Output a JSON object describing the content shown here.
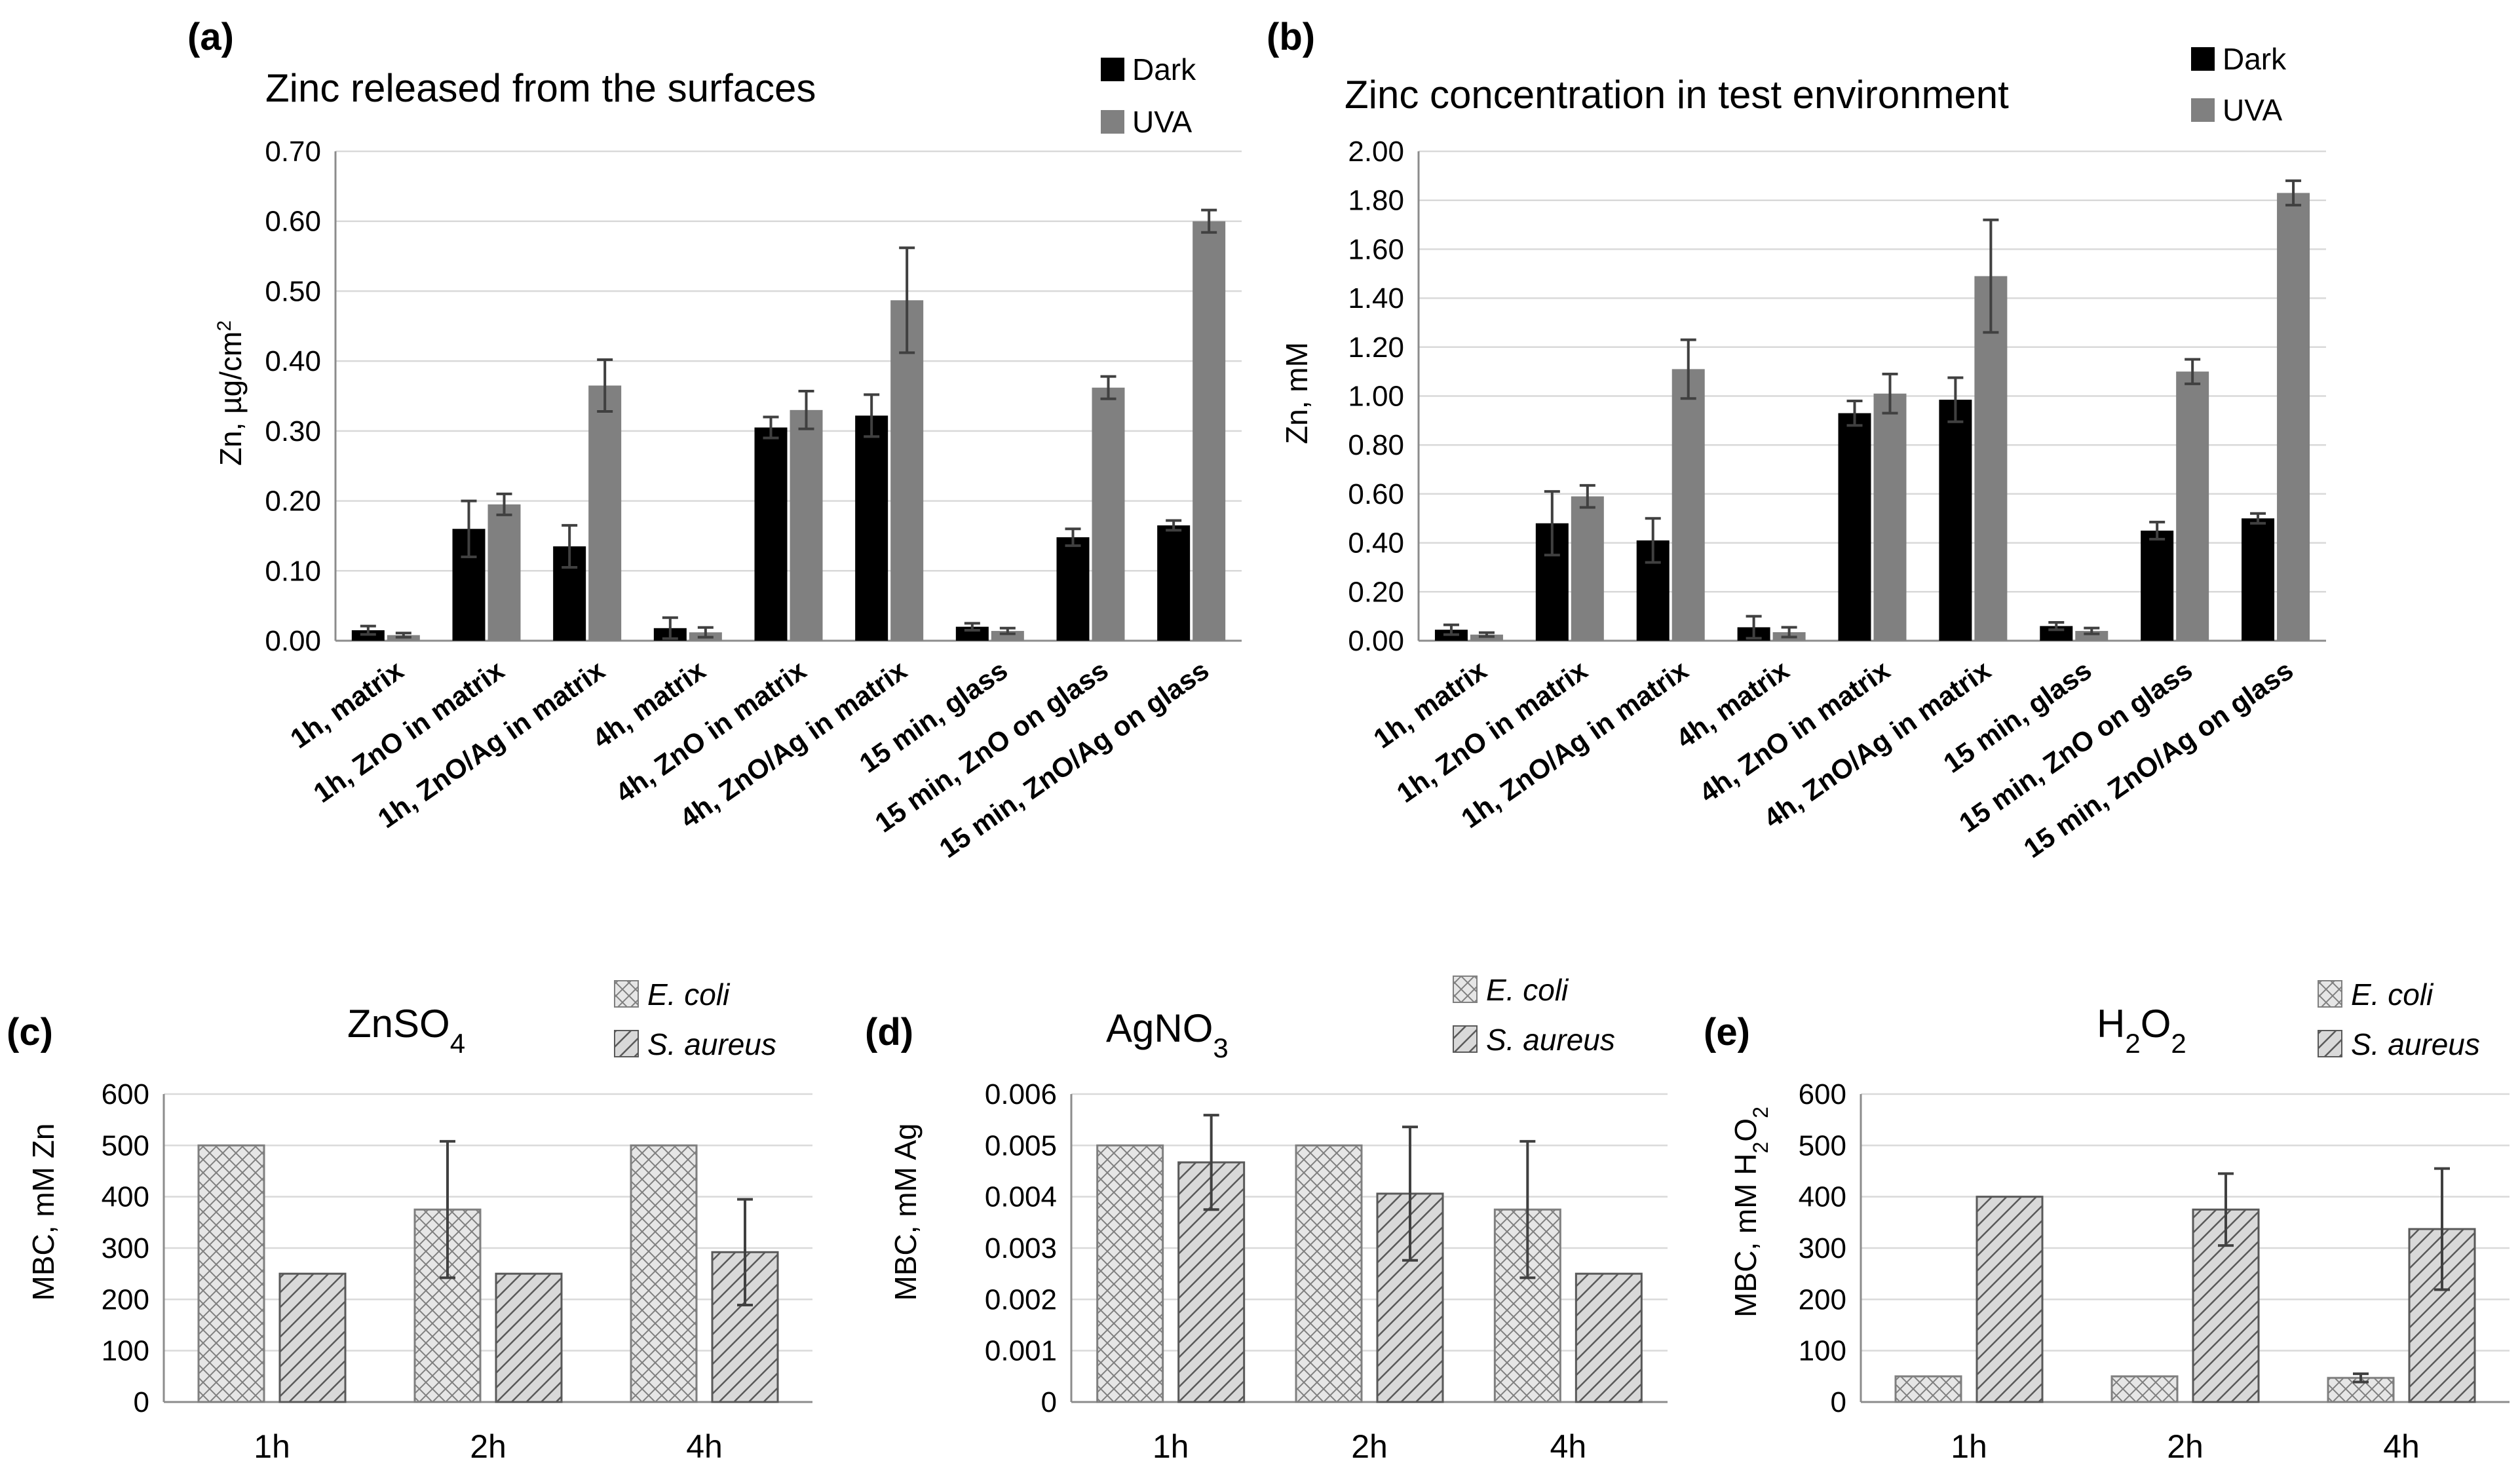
{
  "colors": {
    "dark": "#000000",
    "uva": "#808080",
    "hatch_stroke": "#595959",
    "hatch_bg": "#d9d9d9"
  },
  "panels": {
    "a": {
      "label": "(a)",
      "title": "Zinc released from the surfaces",
      "ylabel_main": "Zn, µg/cm",
      "ylabel_sup": "2"
    },
    "b": {
      "label": "(b)",
      "title": "Zinc concentration in test environment",
      "ylabel": "Zn, mM"
    },
    "c": {
      "label": "(c)",
      "title_main": "ZnSO",
      "title_sub": "4",
      "ylabel": "MBC, mM Zn"
    },
    "d": {
      "label": "(d)",
      "title_main": "AgNO",
      "title_sub": "3",
      "ylabel": "MBC, mM Ag"
    },
    "e": {
      "label": "(e)",
      "title_p1": "H",
      "title_s1": "2",
      "title_p2": "O",
      "title_s2": "2",
      "ylabel_p1": "MBC, mM H",
      "ylabel_s1": "2",
      "ylabel_p2": "O",
      "ylabel_s2": "2"
    }
  },
  "legend_top": {
    "dark": "Dark",
    "uva": "UVA"
  },
  "legend_bottom": {
    "ecoli": "E. coli",
    "saureus": "S. aureus"
  },
  "chart_data": [
    {
      "id": "a",
      "type": "bar",
      "title": "Zinc released from the surfaces",
      "ylabel": "Zn, µg/cm2",
      "ylim": [
        0,
        0.7
      ],
      "yticks": [
        "0.00",
        "0.10",
        "0.20",
        "0.30",
        "0.40",
        "0.50",
        "0.60",
        "0.70"
      ],
      "categories": [
        "1h, matrix",
        "1h,  ZnO in matrix",
        "1h, ZnO/Ag in matrix",
        "4h, matrix",
        "4h, ZnO in matrix",
        "4h, ZnO/Ag in matrix",
        "15 min, glass",
        "15 min, ZnO on glass",
        "15 min, ZnO/Ag on glass"
      ],
      "series": [
        {
          "name": "Dark",
          "values": [
            0.015,
            0.16,
            0.135,
            0.018,
            0.305,
            0.322,
            0.02,
            0.148,
            0.165
          ],
          "errors": [
            0.006,
            0.04,
            0.03,
            0.015,
            0.015,
            0.03,
            0.005,
            0.012,
            0.007
          ]
        },
        {
          "name": "UVA",
          "values": [
            0.008,
            0.195,
            0.365,
            0.012,
            0.33,
            0.487,
            0.014,
            0.362,
            0.6
          ],
          "errors": [
            0.003,
            0.015,
            0.037,
            0.007,
            0.027,
            0.075,
            0.004,
            0.016,
            0.016
          ]
        }
      ]
    },
    {
      "id": "b",
      "type": "bar",
      "title": "Zinc concentration in test environment",
      "ylabel": "Zn, mM",
      "ylim": [
        0,
        2.0
      ],
      "yticks": [
        "0.00",
        "0.20",
        "0.40",
        "0.60",
        "0.80",
        "1.00",
        "1.20",
        "1.40",
        "1.60",
        "1.80",
        "2.00"
      ],
      "categories": [
        "1h, matrix",
        "1h,  ZnO in matrix",
        "1h, ZnO/Ag in matrix",
        "4h, matrix",
        "4h, ZnO in matrix",
        "4h, ZnO/Ag in matrix",
        "15 min, glass",
        "15 min, ZnO on glass",
        "15 min, ZnO/Ag on glass"
      ],
      "series": [
        {
          "name": "Dark",
          "values": [
            0.045,
            0.48,
            0.41,
            0.055,
            0.93,
            0.985,
            0.06,
            0.45,
            0.5
          ],
          "errors": [
            0.02,
            0.13,
            0.09,
            0.045,
            0.05,
            0.09,
            0.015,
            0.035,
            0.02
          ]
        },
        {
          "name": "UVA",
          "values": [
            0.025,
            0.59,
            1.11,
            0.035,
            1.01,
            1.49,
            0.04,
            1.1,
            1.83
          ],
          "errors": [
            0.008,
            0.045,
            0.12,
            0.02,
            0.08,
            0.23,
            0.012,
            0.05,
            0.05
          ]
        }
      ]
    },
    {
      "id": "c",
      "type": "bar",
      "title": "ZnSO4",
      "ylabel": "MBC, mM Zn",
      "ylim": [
        0,
        600
      ],
      "yticks": [
        "0",
        "100",
        "200",
        "300",
        "400",
        "500",
        "600"
      ],
      "categories": [
        "1h",
        "2h",
        "4h"
      ],
      "series": [
        {
          "name": "E. coli",
          "values": [
            500,
            375,
            500
          ],
          "errors": [
            0,
            133,
            0
          ]
        },
        {
          "name": "S. aureus",
          "values": [
            250,
            250,
            292
          ],
          "errors": [
            0,
            0,
            103
          ]
        }
      ]
    },
    {
      "id": "d",
      "type": "bar",
      "title": "AgNO3",
      "ylabel": "MBC, mM Ag",
      "ylim": [
        0,
        0.006
      ],
      "yticks": [
        "0",
        "0.001",
        "0.002",
        "0.003",
        "0.004",
        "0.005",
        "0.006"
      ],
      "categories": [
        "1h",
        "2h",
        "4h"
      ],
      "series": [
        {
          "name": "E. coli",
          "values": [
            0.005,
            0.005,
            0.00375
          ],
          "errors": [
            0,
            0,
            0.00133
          ]
        },
        {
          "name": "S. aureus",
          "values": [
            0.00467,
            0.00406,
            0.0025
          ],
          "errors": [
            0.00092,
            0.0013,
            0
          ]
        }
      ]
    },
    {
      "id": "e",
      "type": "bar",
      "title": "H2O2",
      "ylabel": "MBC, mM H2O2",
      "ylim": [
        0,
        600
      ],
      "yticks": [
        "0",
        "100",
        "200",
        "300",
        "400",
        "500",
        "600"
      ],
      "categories": [
        "1h",
        "2h",
        "4h"
      ],
      "series": [
        {
          "name": "E. coli",
          "values": [
            50,
            50,
            47
          ],
          "errors": [
            0,
            0,
            8
          ]
        },
        {
          "name": "S. aureus",
          "values": [
            400,
            375,
            337
          ],
          "errors": [
            0,
            70,
            118
          ]
        }
      ]
    }
  ]
}
